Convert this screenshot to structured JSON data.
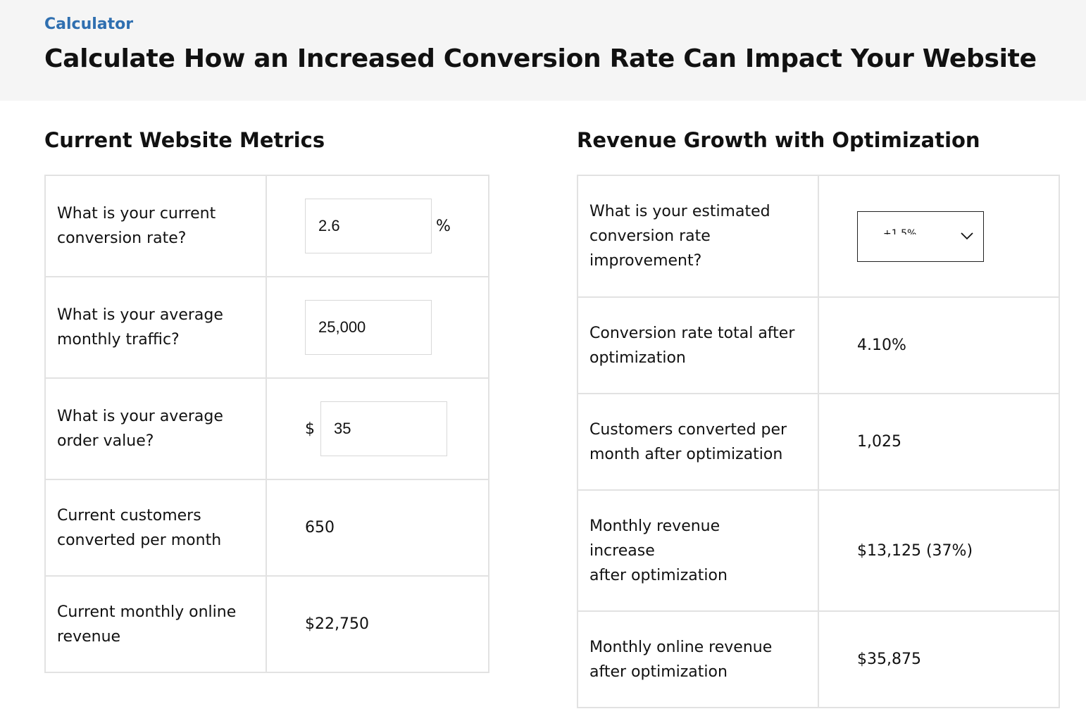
{
  "header": {
    "eyebrow": "Calculator",
    "title": "Calculate How an Increased Conversion Rate Can Impact Your Website"
  },
  "current_metrics": {
    "title": "Current Website Metrics",
    "conversion_rate": {
      "label": "What is your current conversion rate?",
      "value": "2.6",
      "unit": "%"
    },
    "traffic": {
      "label": "What is your average monthly traffic?",
      "value": "25,000"
    },
    "order_value": {
      "label": "What is your average order value?",
      "currency": "$",
      "value": "35"
    },
    "customers": {
      "label": "Current customers converted per month",
      "value": "650"
    },
    "revenue": {
      "label": "Current monthly online revenue",
      "value": "$22,750"
    }
  },
  "growth": {
    "title": "Revenue Growth with Optimization",
    "improvement": {
      "label": "What is your estimated conversion rate improvement?",
      "selected": "+1.5%"
    },
    "conversion_total": {
      "label": "Conversion rate total after optimization",
      "value": "4.10%"
    },
    "customers": {
      "label": "Customers converted per month after optimization",
      "value": "1,025"
    },
    "revenue_increase": {
      "label": "Monthly revenue increase after optimization",
      "value": "$13,125 (37%)"
    },
    "revenue_total": {
      "label": "Monthly online revenue after optimization",
      "value": "$35,875"
    }
  },
  "colors": {
    "accent": "#2f6fb0",
    "header_bg": "#f5f5f5",
    "border": "#e2e2e2"
  },
  "icons": {
    "select_arrow": "chevron-down-icon"
  }
}
